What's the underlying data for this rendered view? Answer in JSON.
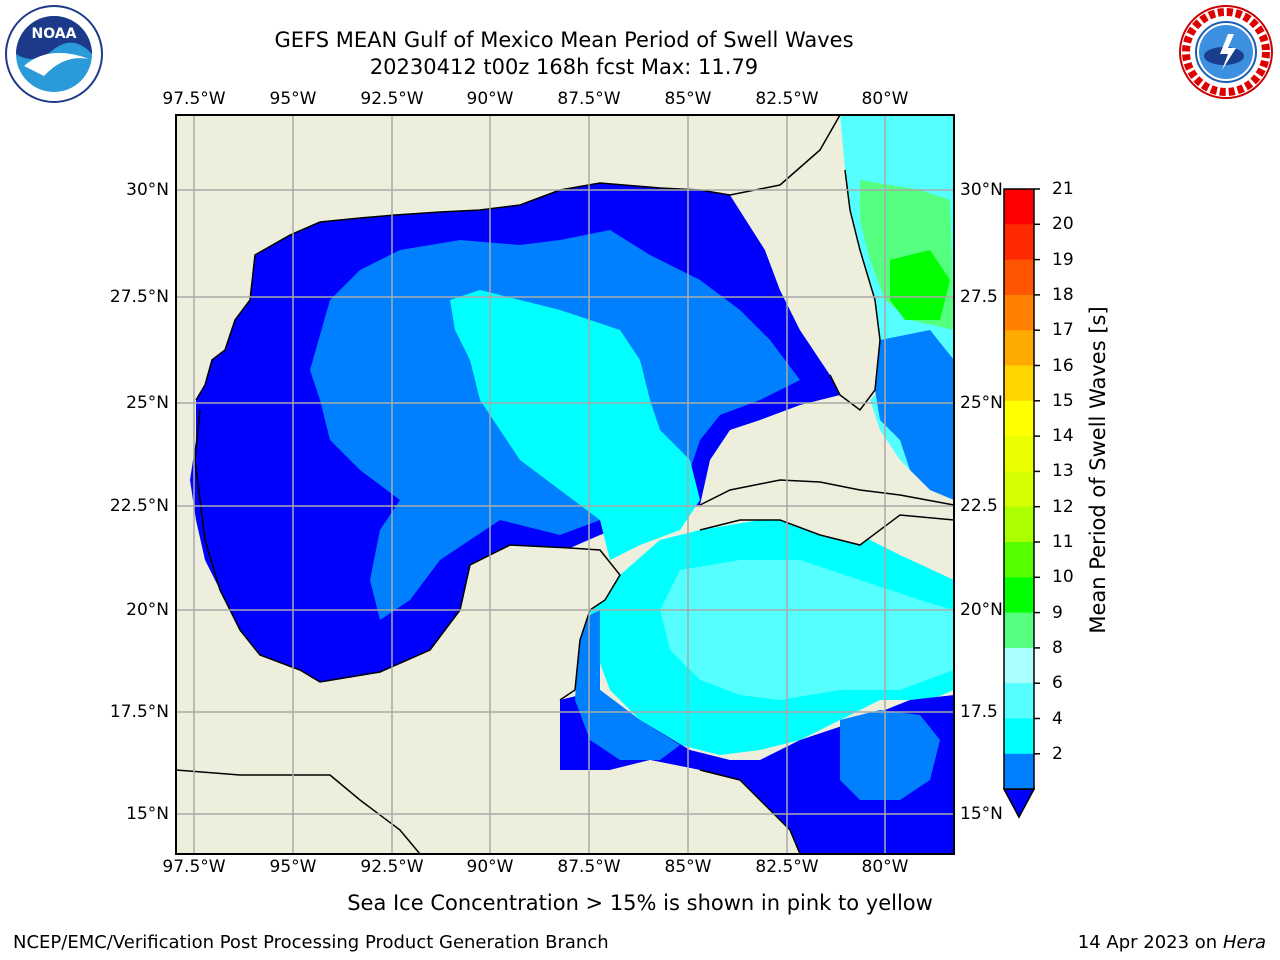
{
  "title": {
    "line1": "GEFS MEAN Gulf of Mexico Mean Period of Swell Waves",
    "line2": "20230412 t00z 168h fcst   Max: 11.79"
  },
  "logos": {
    "noaa": {
      "icon": "noaa-logo",
      "text": "NOAA"
    },
    "nws": {
      "icon": "nws-logo",
      "text": "NATIONAL WEATHER SERVICE"
    }
  },
  "axes": {
    "lon_labels": [
      "97.5°W",
      "95°W",
      "92.5°W",
      "90°W",
      "87.5°W",
      "85°W",
      "82.5°W",
      "80°W"
    ],
    "lat_labels_left": [
      "30°N",
      "27.5°N",
      "25°N",
      "22.5°N",
      "20°N",
      "17.5°N",
      "15°N"
    ],
    "lat_labels_right": [
      "30°N",
      "27.5",
      "25°N",
      "22.5",
      "20°N",
      "17.5",
      "15°N"
    ]
  },
  "colorbar": {
    "label": "Mean Period of Swell Waves [s]",
    "ticks": [
      "21",
      "20",
      "19",
      "18",
      "17",
      "16",
      "15",
      "14",
      "13",
      "12",
      "11",
      "10",
      "9",
      "8",
      "6",
      "4",
      "2"
    ],
    "colors": [
      "#ff0000",
      "#ff2a00",
      "#ff5500",
      "#ff8000",
      "#ffaa00",
      "#ffd500",
      "#ffff00",
      "#eaff00",
      "#d4ff00",
      "#aaff00",
      "#55ff00",
      "#00ff00",
      "#55ff7f",
      "#aaffff",
      "#55ffff",
      "#00ffff",
      "#0080ff"
    ],
    "extend_color": "#0000ff"
  },
  "colors": {
    "land": "#eeeedc",
    "ocean_deep": "#0000ff",
    "ocean_mid": "#0080ff",
    "ocean_light": "#00ffff",
    "ocean_lighter": "#55ffff",
    "ocean_pale": "#aaffff",
    "green": "#55ff7f",
    "brightgreen": "#00ff00"
  },
  "subtitle": "Sea Ice Concentration > 15% is shown in pink to yellow",
  "footer": {
    "left": "NCEP/EMC/Verification Post Processing Product Generation Branch",
    "date": "14 Apr 2023 on ",
    "host": "Hera"
  }
}
